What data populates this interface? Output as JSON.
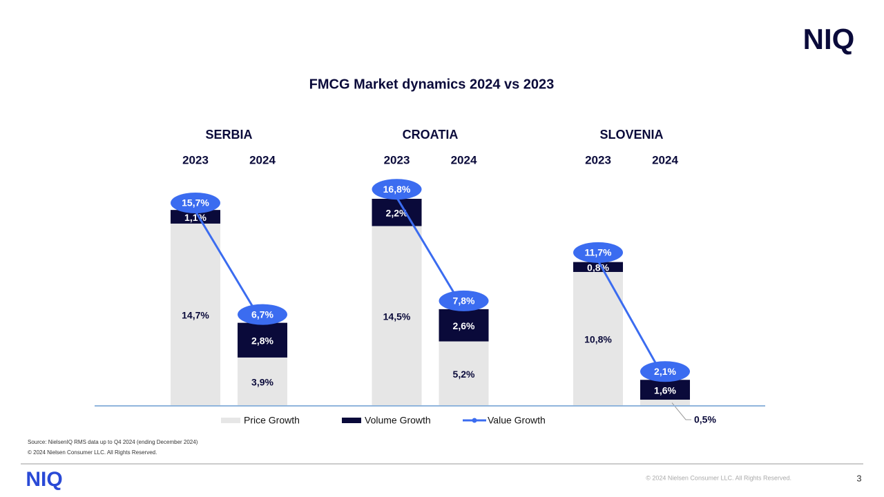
{
  "chart_data": {
    "type": "stacked-bar-line",
    "title": "FMCG Market dynamics 2024 vs 2023",
    "groups": [
      "SERBIA",
      "CROATIA",
      "SLOVENIA"
    ],
    "categories": [
      "2023",
      "2024",
      "2023",
      "2024",
      "2023",
      "2024"
    ],
    "series": [
      {
        "name": "Price Growth",
        "color": "#e6e6e6",
        "values": [
          14.7,
          3.9,
          14.5,
          5.2,
          10.8,
          0.5
        ],
        "value_labels": [
          "14,7%",
          "3,9%",
          "14,5%",
          "5,2%",
          "10,8%",
          "0,5%"
        ]
      },
      {
        "name": "Volume Growth",
        "color": "#0a0a3a",
        "values": [
          1.1,
          2.8,
          2.2,
          2.6,
          0.8,
          1.6
        ],
        "value_labels": [
          "1,1%",
          "2,8%",
          "2,2%",
          "2,6%",
          "0,8%",
          "1,6%"
        ]
      },
      {
        "name": "Value Growth",
        "color": "#3b6cf0",
        "type": "line",
        "values": [
          15.7,
          6.7,
          16.8,
          7.8,
          11.7,
          2.1
        ],
        "value_labels": [
          "15,7%",
          "6,7%",
          "16,8%",
          "7,8%",
          "11,7%",
          "2,1%"
        ]
      }
    ]
  },
  "page": {
    "logo": "NIQ",
    "source": "Source: NielsenIQ RMS data up to Q4 2024 (ending December 2024)",
    "copyright": "© 2024 Nielsen Consumer LLC. All Rights Reserved.",
    "footer": "© 2024 Nielsen Consumer LLC. All Rights Reserved.",
    "page_number": 3
  }
}
